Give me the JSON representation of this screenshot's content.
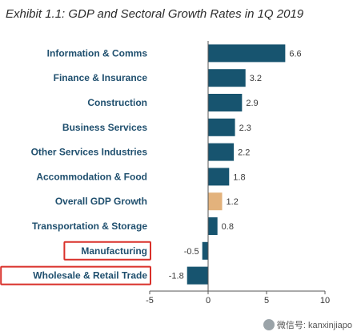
{
  "chart_data": {
    "type": "bar",
    "orientation": "horizontal",
    "title": "Exhibit 1.1: GDP and Sectoral Growth Rates in 1Q 2019",
    "categories": [
      "Information & Comms",
      "Finance & Insurance",
      "Construction",
      "Business Services",
      "Other Services Industries",
      "Accommodation & Food",
      "Overall GDP Growth",
      "Transportation & Storage",
      "Manufacturing",
      "Wholesale & Retail Trade"
    ],
    "values": [
      6.6,
      3.2,
      2.9,
      2.3,
      2.2,
      1.8,
      1.2,
      0.8,
      -0.5,
      -1.8
    ],
    "value_labels": [
      "6.6",
      "3.2",
      "2.9",
      "2.3",
      "2.2",
      "1.8",
      "1.2",
      "0.8",
      "-0.5",
      "-1.8"
    ],
    "highlight_index": 6,
    "boxed_categories": [
      8,
      9
    ],
    "xlim": [
      -5,
      10
    ],
    "xticks": [
      "-5",
      "0",
      "5",
      "10"
    ],
    "grid": false,
    "colors": {
      "bar": "#17546f",
      "highlight": "#e3b27c",
      "box": "#d9302a",
      "axis": "#555555"
    }
  },
  "watermark": {
    "text": "微信号: kanxinjiapo"
  }
}
